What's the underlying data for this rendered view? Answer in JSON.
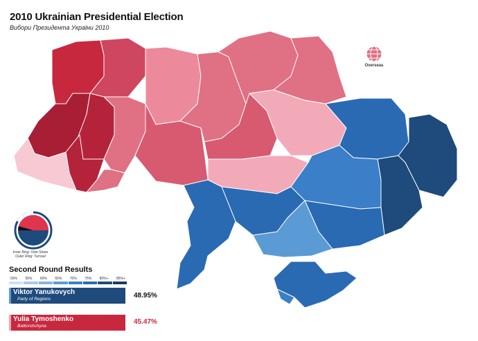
{
  "title": "2010 Ukrainian Presidential Election",
  "subtitle": "Вибори Президента України 2010",
  "overseas_label": "Overseas",
  "ring_note": {
    "inner": "Inner Ring: Vote Share",
    "outer": "Outer Ring: Turnout"
  },
  "results": {
    "heading": "Second Round Results",
    "scale": [
      "50%",
      "55%",
      "60%",
      "65%",
      "70%",
      "75%",
      "80%+",
      "85%+"
    ],
    "candidates": [
      {
        "name": "Viktor Yanukovych",
        "party": "Party of Regions",
        "percent": "48.95%",
        "color": "#1e4a7c",
        "accent": "#5b9bd5"
      },
      {
        "name": "Yulia Tymoshenko",
        "party": "Batkivshchyna",
        "percent": "45.47%",
        "color": "#c8283e",
        "accent": "#f2a4b3"
      }
    ]
  },
  "colors": {
    "blue_scale": [
      "#cfe0f2",
      "#a9c9ea",
      "#87b4e3",
      "#5b9bd5",
      "#3a7fc8",
      "#2a6ab3",
      "#1e4a7c",
      "#173b63"
    ],
    "red_scale": [
      "#f7c9d2",
      "#f2aab8",
      "#ec8a9c",
      "#e07083",
      "#d85a70",
      "#cf4660",
      "#c8283e",
      "#a81f35"
    ]
  }
}
